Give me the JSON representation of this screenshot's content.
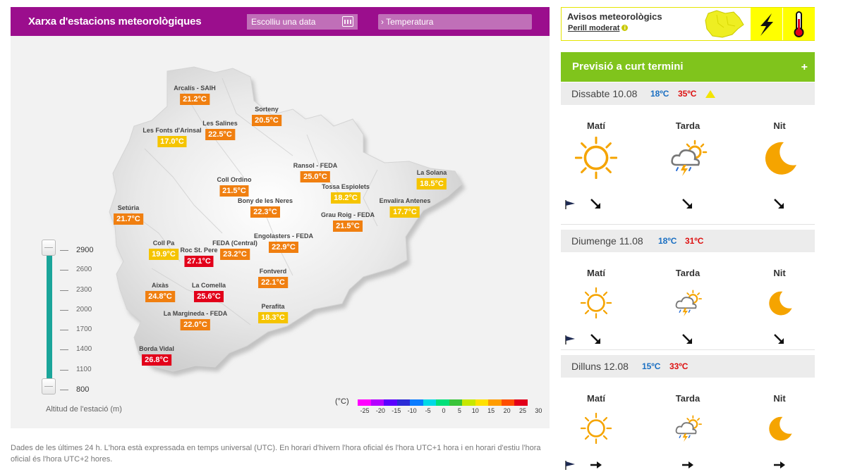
{
  "header": {
    "title": "Xarxa d'estacions meteorològiques",
    "date_placeholder": "Escolliu una data",
    "variable": "› Temperatura"
  },
  "map": {
    "stations": [
      {
        "name": "Arcalís - SAIH",
        "temp": "21.2°C",
        "level": "orange"
      },
      {
        "name": "Sorteny",
        "temp": "20.5°C",
        "level": "orange"
      },
      {
        "name": "Les Salines",
        "temp": "22.5°C",
        "level": "orange"
      },
      {
        "name": "Les Fonts d'Arinsal",
        "temp": "17.0°C",
        "level": "yellow"
      },
      {
        "name": "Ransol - FEDA",
        "temp": "25.0°C",
        "level": "orange"
      },
      {
        "name": "La Solana",
        "temp": "18.5°C",
        "level": "yellow"
      },
      {
        "name": "Coll Ordino",
        "temp": "21.5°C",
        "level": "orange"
      },
      {
        "name": "Tossa Espiolets",
        "temp": "18.2°C",
        "level": "yellow"
      },
      {
        "name": "Bony de les Neres",
        "temp": "22.3°C",
        "level": "orange"
      },
      {
        "name": "Envalira Antenes",
        "temp": "17.7°C",
        "level": "yellow"
      },
      {
        "name": "Setúria",
        "temp": "21.7°C",
        "level": "orange"
      },
      {
        "name": "Grau Roig - FEDA",
        "temp": "21.5°C",
        "level": "orange"
      },
      {
        "name": "Engolasters - FEDA",
        "temp": "22.9°C",
        "level": "orange"
      },
      {
        "name": "Coll Pa",
        "temp": "19.9°C",
        "level": "yellow"
      },
      {
        "name": "FEDA (Central)",
        "temp": "23.2°C",
        "level": "orange"
      },
      {
        "name": "Roc St. Pere",
        "temp": "27.1°C",
        "level": "red"
      },
      {
        "name": "Fontverd",
        "temp": "22.1°C",
        "level": "orange"
      },
      {
        "name": "Aixàs",
        "temp": "24.8°C",
        "level": "orange"
      },
      {
        "name": "La Comella",
        "temp": "25.6°C",
        "level": "red"
      },
      {
        "name": "Perafita",
        "temp": "18.3°C",
        "level": "yellow"
      },
      {
        "name": "La Margineda - FEDA",
        "temp": "22.0°C",
        "level": "orange"
      },
      {
        "name": "Borda Vidal",
        "temp": "26.8°C",
        "level": "red"
      }
    ],
    "level_colors": {
      "yellow": "#f5c400",
      "orange": "#f07f10",
      "red": "#e2001a"
    },
    "altitude": {
      "labels": [
        "2900",
        "2600",
        "2300",
        "2000",
        "1700",
        "1400",
        "1100",
        "800"
      ],
      "caption": "Altitud de l'estació (m)"
    },
    "legend": {
      "unit": "(°C)",
      "labels": [
        "-25",
        "-20",
        "-15",
        "-10",
        "-5",
        "0",
        "5",
        "10",
        "15",
        "20",
        "25",
        "30"
      ],
      "colors": [
        "#ff00ff",
        "#b400ff",
        "#5a00ff",
        "#2b2bd6",
        "#0a7cff",
        "#00d9e6",
        "#00e07a",
        "#3ac43a",
        "#c7e800",
        "#ffe100",
        "#ff9c00",
        "#ff4e00",
        "#e2001a"
      ]
    }
  },
  "footnote": "Dades de les últimes 24 h. L'hora està expressada en temps universal (UTC). En horari d'hivern l'hora oficial és l'hora UTC+1 hora i en horari d'estiu l'hora oficial és l'hora UTC+2 hores.",
  "warnings": {
    "title": "Avisos meteorològics",
    "level": "Perill moderat",
    "info_icon": "i"
  },
  "forecast": {
    "title": "Previsió a curt termini",
    "expand": "+",
    "days": [
      {
        "name": "Dissabte 10.08",
        "tmin": "18ºC",
        "tmax": "35ºC",
        "warning": true,
        "periods": [
          {
            "label": "Matí",
            "icon": "sun-icon",
            "wind": "arrow-down-right"
          },
          {
            "label": "Tarda",
            "icon": "storm-sun-icon",
            "wind": "arrow-down-right"
          },
          {
            "label": "Nit",
            "icon": "moon-icon",
            "wind": "arrow-down-right"
          }
        ]
      },
      {
        "name": "Diumenge 11.08",
        "tmin": "18ºC",
        "tmax": "31ºC",
        "warning": false,
        "periods": [
          {
            "label": "Matí",
            "icon": "sun-icon",
            "wind": "arrow-down-right"
          },
          {
            "label": "Tarda",
            "icon": "storm-sun-icon",
            "wind": "arrow-down-right"
          },
          {
            "label": "Nit",
            "icon": "moon-icon",
            "wind": "arrow-down-right"
          }
        ]
      },
      {
        "name": "Dilluns 12.08",
        "tmin": "15ºC",
        "tmax": "33ºC",
        "warning": false,
        "periods": [
          {
            "label": "Matí",
            "icon": "sun-icon",
            "wind": "arrow-right"
          },
          {
            "label": "Tarda",
            "icon": "storm-sun-icon",
            "wind": "arrow-right"
          },
          {
            "label": "Nit",
            "icon": "moon-icon",
            "wind": "arrow-right"
          }
        ]
      }
    ]
  }
}
